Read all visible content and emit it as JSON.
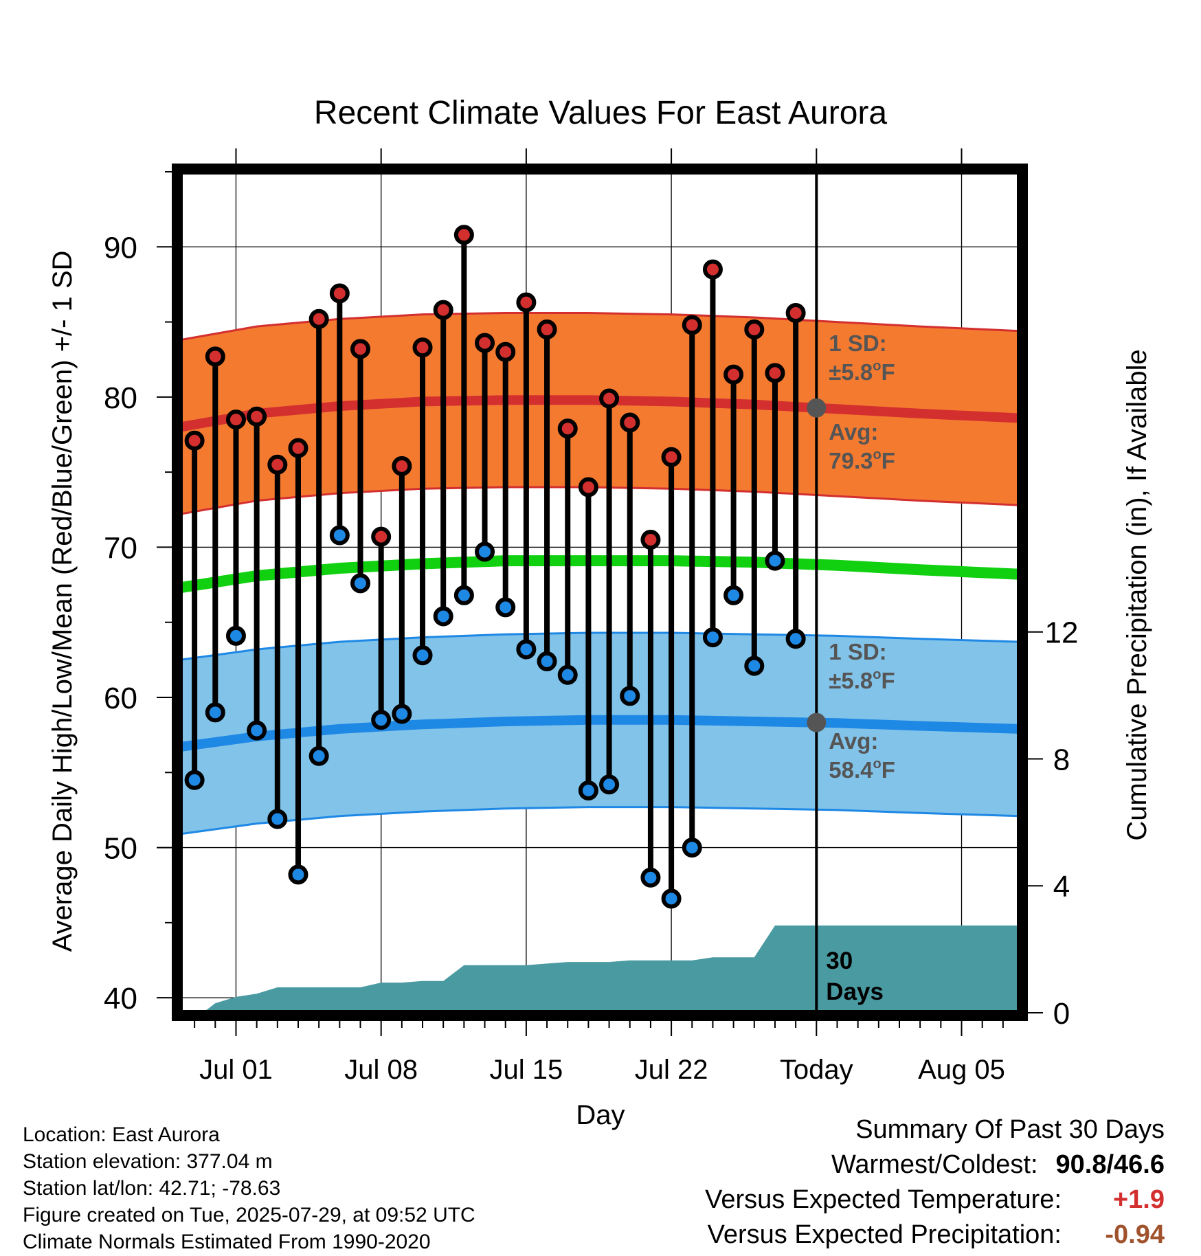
{
  "chart_data": {
    "type": "line",
    "title": "Recent Climate Values For East Aurora",
    "xlabel": "Day",
    "ylabel_left": "Average Daily High/Low/Mean (Red/Blue/Green) +/- 1 SD",
    "ylabel_right": "Cumulative Precipitation (in), If Available",
    "ylim_left": [
      39,
      95
    ],
    "ylim_right": [
      0,
      26.5
    ],
    "left_ticks": [
      "40",
      "50",
      "60",
      "70",
      "80",
      "90"
    ],
    "right_ticks": [
      "0",
      "4",
      "8",
      "12"
    ],
    "x_ticks": [
      {
        "day": 1,
        "label": "Jul 01"
      },
      {
        "day": 8,
        "label": "Jul 08"
      },
      {
        "day": 15,
        "label": "Jul 15"
      },
      {
        "day": 22,
        "label": "Jul 22"
      },
      {
        "day": 29,
        "label": "Today"
      },
      {
        "day": 36,
        "label": "Aug 05"
      }
    ],
    "xlim": [
      -1.7,
      38.8
    ],
    "grid": true,
    "today_day": 29,
    "observed_days": [
      -1,
      0,
      1,
      2,
      3,
      4,
      5,
      6,
      7,
      8,
      9,
      10,
      11,
      12,
      13,
      14,
      15,
      16,
      17,
      18,
      19,
      20,
      21,
      22,
      23,
      24,
      25,
      26,
      27,
      28
    ],
    "observed_highs": [
      77.1,
      82.7,
      78.5,
      78.7,
      75.5,
      76.6,
      85.2,
      86.9,
      83.2,
      70.7,
      75.4,
      83.3,
      85.8,
      90.8,
      83.6,
      83.0,
      86.3,
      84.5,
      77.9,
      74.0,
      79.9,
      78.3,
      70.5,
      76.0,
      84.8,
      88.5,
      81.5,
      84.5,
      81.6,
      85.6
    ],
    "observed_lows": [
      54.5,
      59.0,
      64.1,
      57.8,
      51.9,
      48.2,
      56.1,
      70.8,
      67.6,
      58.5,
      58.9,
      62.8,
      65.4,
      66.8,
      69.7,
      66.0,
      63.2,
      62.4,
      61.5,
      53.8,
      54.2,
      60.1,
      48.0,
      46.6,
      50.0,
      64.0,
      66.8,
      62.1,
      69.1,
      63.9
    ],
    "normals": {
      "days": [
        -1.7,
        2,
        6,
        10,
        14,
        18,
        22,
        26,
        30,
        34,
        38.8
      ],
      "high_avg": [
        78.0,
        78.9,
        79.4,
        79.7,
        79.8,
        79.8,
        79.7,
        79.5,
        79.2,
        78.9,
        78.6
      ],
      "low_avg": [
        56.7,
        57.4,
        57.9,
        58.2,
        58.4,
        58.5,
        58.5,
        58.4,
        58.3,
        58.1,
        57.9
      ],
      "mean_avg": [
        67.3,
        68.1,
        68.6,
        68.9,
        69.1,
        69.1,
        69.1,
        69.0,
        68.8,
        68.5,
        68.2
      ],
      "sd": 5.8
    },
    "precip": {
      "days": [
        -1.7,
        -0.6,
        0,
        1,
        2,
        3,
        4,
        5,
        6,
        7,
        8,
        9,
        10,
        11,
        12,
        13,
        14,
        15,
        16,
        17,
        18,
        19,
        20,
        21,
        22,
        23,
        24,
        25,
        26,
        27,
        28,
        29,
        38.8
      ],
      "cumulative": [
        0,
        0,
        0.3,
        0.5,
        0.6,
        0.8,
        0.8,
        0.8,
        0.8,
        0.8,
        0.95,
        0.95,
        1.0,
        1.0,
        1.5,
        1.5,
        1.5,
        1.5,
        1.55,
        1.6,
        1.6,
        1.6,
        1.65,
        1.65,
        1.65,
        1.65,
        1.75,
        1.75,
        1.75,
        2.75,
        2.75,
        2.75,
        2.75
      ]
    },
    "annotations": {
      "high_sd_line1": "1 SD:",
      "high_sd_line2": "±5.8",
      "high_avg_line1": "Avg:",
      "high_avg_line2": "79.3",
      "low_sd_line1": "1 SD:",
      "low_sd_line2": "±5.8",
      "low_avg_line1": "Avg:",
      "low_avg_line2": "58.4",
      "unit_sup": "o",
      "unit_letter": "F",
      "days_line1": "30",
      "days_line2": "Days"
    },
    "colors": {
      "high": "#d32f2f",
      "high_band": "#f47a30",
      "low": "#1e88e5",
      "low_band": "#82c3ea",
      "mean": "#10d010",
      "precip": "#4a9aa2",
      "annotation": "#555555"
    }
  },
  "footer": {
    "location": "Location: East Aurora",
    "elevation": "Station elevation: 377.04 m",
    "latlon": "Station lat/lon: 42.71; -78.63",
    "created": "Figure created on Tue, 2025-07-29, at 09:52 UTC",
    "normals": "Climate Normals Estimated From 1990-2020"
  },
  "summary": {
    "title": "Summary Of Past 30 Days",
    "warmest_label": "Warmest/Coldest:",
    "warmest_value": "90.8/46.6",
    "temp_label": "Versus Expected Temperature:",
    "temp_value": "+1.9",
    "precip_label": "Versus Expected Precipitation:",
    "precip_value": "-0.94"
  }
}
